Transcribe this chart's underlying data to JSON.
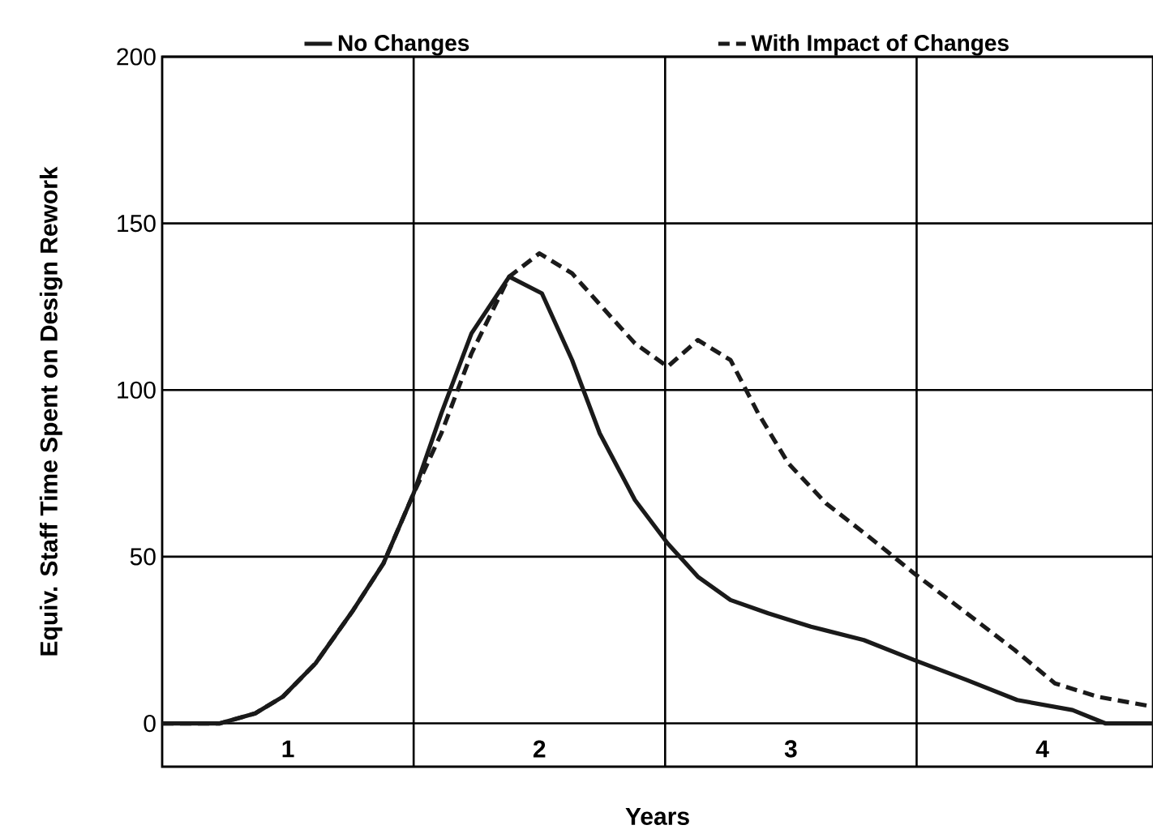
{
  "chart_data": {
    "type": "line",
    "xlabel": "Years",
    "ylabel": "Equiv. Staff Time Spent on Design Rework",
    "xlim": [
      0,
      3.94
    ],
    "ylim": [
      -13,
      200
    ],
    "xticks": [
      {
        "value": 0.5,
        "label": "1"
      },
      {
        "value": 1,
        "label": null
      },
      {
        "value": 1.5,
        "label": "2"
      },
      {
        "value": 2,
        "label": null
      },
      {
        "value": 2.5,
        "label": "3"
      },
      {
        "value": 3,
        "label": null
      },
      {
        "value": 3.5,
        "label": "4"
      }
    ],
    "yticks": [
      0,
      50,
      100,
      150,
      200
    ],
    "grid": true,
    "legend": "top",
    "series": [
      {
        "name": "No Changes",
        "color": "#1a1a1a",
        "line_style": "solid",
        "x": [
          0,
          0.11,
          0.23,
          0.37,
          0.48,
          0.61,
          0.76,
          0.88,
          1.0,
          1.11,
          1.23,
          1.38,
          1.51,
          1.63,
          1.74,
          1.88,
          2.01,
          2.13,
          2.26,
          2.41,
          2.58,
          2.79,
          2.99,
          3.2,
          3.4,
          3.62,
          3.75,
          3.94
        ],
        "values": [
          0,
          0,
          0,
          3,
          8,
          18,
          34,
          48,
          69,
          93,
          117,
          134,
          129,
          109,
          87,
          67,
          54,
          44,
          37,
          33,
          29,
          25,
          19,
          13,
          7,
          4,
          0,
          0
        ]
      },
      {
        "name": "With Impact of Changes",
        "color": "#1a1a1a",
        "line_style": "dashed",
        "x": [
          0,
          0.11,
          0.23,
          0.37,
          0.48,
          0.61,
          0.76,
          0.88,
          1.0,
          1.11,
          1.23,
          1.38,
          1.5,
          1.63,
          1.76,
          1.88,
          2.01,
          2.13,
          2.26,
          2.37,
          2.49,
          2.64,
          2.81,
          2.99,
          3.2,
          3.39,
          3.55,
          3.72,
          3.94
        ],
        "values": [
          0,
          0,
          0,
          3,
          8,
          18,
          34,
          48,
          69,
          87,
          111,
          134,
          141,
          135,
          124,
          114,
          107,
          115,
          109,
          93,
          78,
          66,
          56,
          45,
          33,
          22,
          12,
          8,
          5
        ]
      }
    ]
  }
}
